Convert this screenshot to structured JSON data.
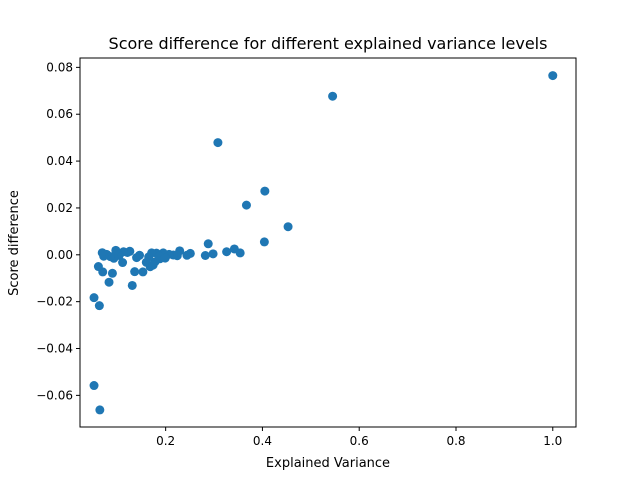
{
  "chart_data": {
    "type": "scatter",
    "title": "Score difference for different explained variance levels",
    "xlabel": "Explained Variance",
    "ylabel": "Score difference",
    "xlim": [
      0.023,
      1.048
    ],
    "ylim": [
      -0.0735,
      0.084
    ],
    "xticks": [
      0.2,
      0.4,
      0.6,
      0.8,
      1.0
    ],
    "xtick_labels": [
      "0.2",
      "0.4",
      "0.6",
      "0.8",
      "1.0"
    ],
    "yticks": [
      -0.06,
      -0.04,
      -0.02,
      0.0,
      0.02,
      0.04,
      0.06,
      0.08
    ],
    "ytick_labels": [
      "−0.06",
      "−0.04",
      "−0.02",
      "0.00",
      "0.02",
      "0.04",
      "0.06",
      "0.08"
    ],
    "grid": false,
    "marker_color": "#1f77b4",
    "points": [
      [
        1.0,
        0.0765
      ],
      [
        0.545,
        0.0677
      ],
      [
        0.308,
        0.0479
      ],
      [
        0.405,
        0.0272
      ],
      [
        0.367,
        0.0212
      ],
      [
        0.453,
        0.012
      ],
      [
        0.404,
        0.0055
      ],
      [
        0.288,
        0.0047
      ],
      [
        0.342,
        0.0025
      ],
      [
        0.326,
        0.0013
      ],
      [
        0.354,
        0.0008
      ],
      [
        0.298,
        0.0004
      ],
      [
        0.282,
        -0.0003
      ],
      [
        0.251,
        0.0006
      ],
      [
        0.244,
        -0.0002
      ],
      [
        0.229,
        0.0017
      ],
      [
        0.224,
        -0.0004
      ],
      [
        0.216,
        -0.0001
      ],
      [
        0.207,
        0.0002
      ],
      [
        0.199,
        -0.0009
      ],
      [
        0.195,
        0.0008
      ],
      [
        0.188,
        -0.0017
      ],
      [
        0.181,
        0.0007
      ],
      [
        0.178,
        -0.003
      ],
      [
        0.171,
        0.0008
      ],
      [
        0.165,
        -0.0009
      ],
      [
        0.168,
        -0.0051
      ],
      [
        0.16,
        -0.0032
      ],
      [
        0.153,
        -0.0073
      ],
      [
        0.146,
        -0.0002
      ],
      [
        0.14,
        -0.0012
      ],
      [
        0.136,
        -0.0072
      ],
      [
        0.126,
        0.0015
      ],
      [
        0.121,
        0.001
      ],
      [
        0.113,
        0.0013
      ],
      [
        0.111,
        -0.0033
      ],
      [
        0.104,
        -0.0003
      ],
      [
        0.097,
        0.0019
      ],
      [
        0.093,
        -0.0015
      ],
      [
        0.09,
        -0.0079
      ],
      [
        0.086,
        -0.0008
      ],
      [
        0.083,
        -0.0117
      ],
      [
        0.078,
        0.0002
      ],
      [
        0.072,
        -0.0006
      ],
      [
        0.069,
        0.0009
      ],
      [
        0.07,
        -0.0073
      ],
      [
        0.061,
        -0.005
      ],
      [
        0.063,
        -0.0217
      ],
      [
        0.052,
        -0.0183
      ],
      [
        0.052,
        -0.0558
      ],
      [
        0.064,
        -0.0662
      ],
      [
        0.131,
        -0.0131
      ],
      [
        0.187,
        -0.0006
      ],
      [
        0.199,
        -0.0014
      ],
      [
        0.174,
        -0.0044
      ]
    ]
  }
}
